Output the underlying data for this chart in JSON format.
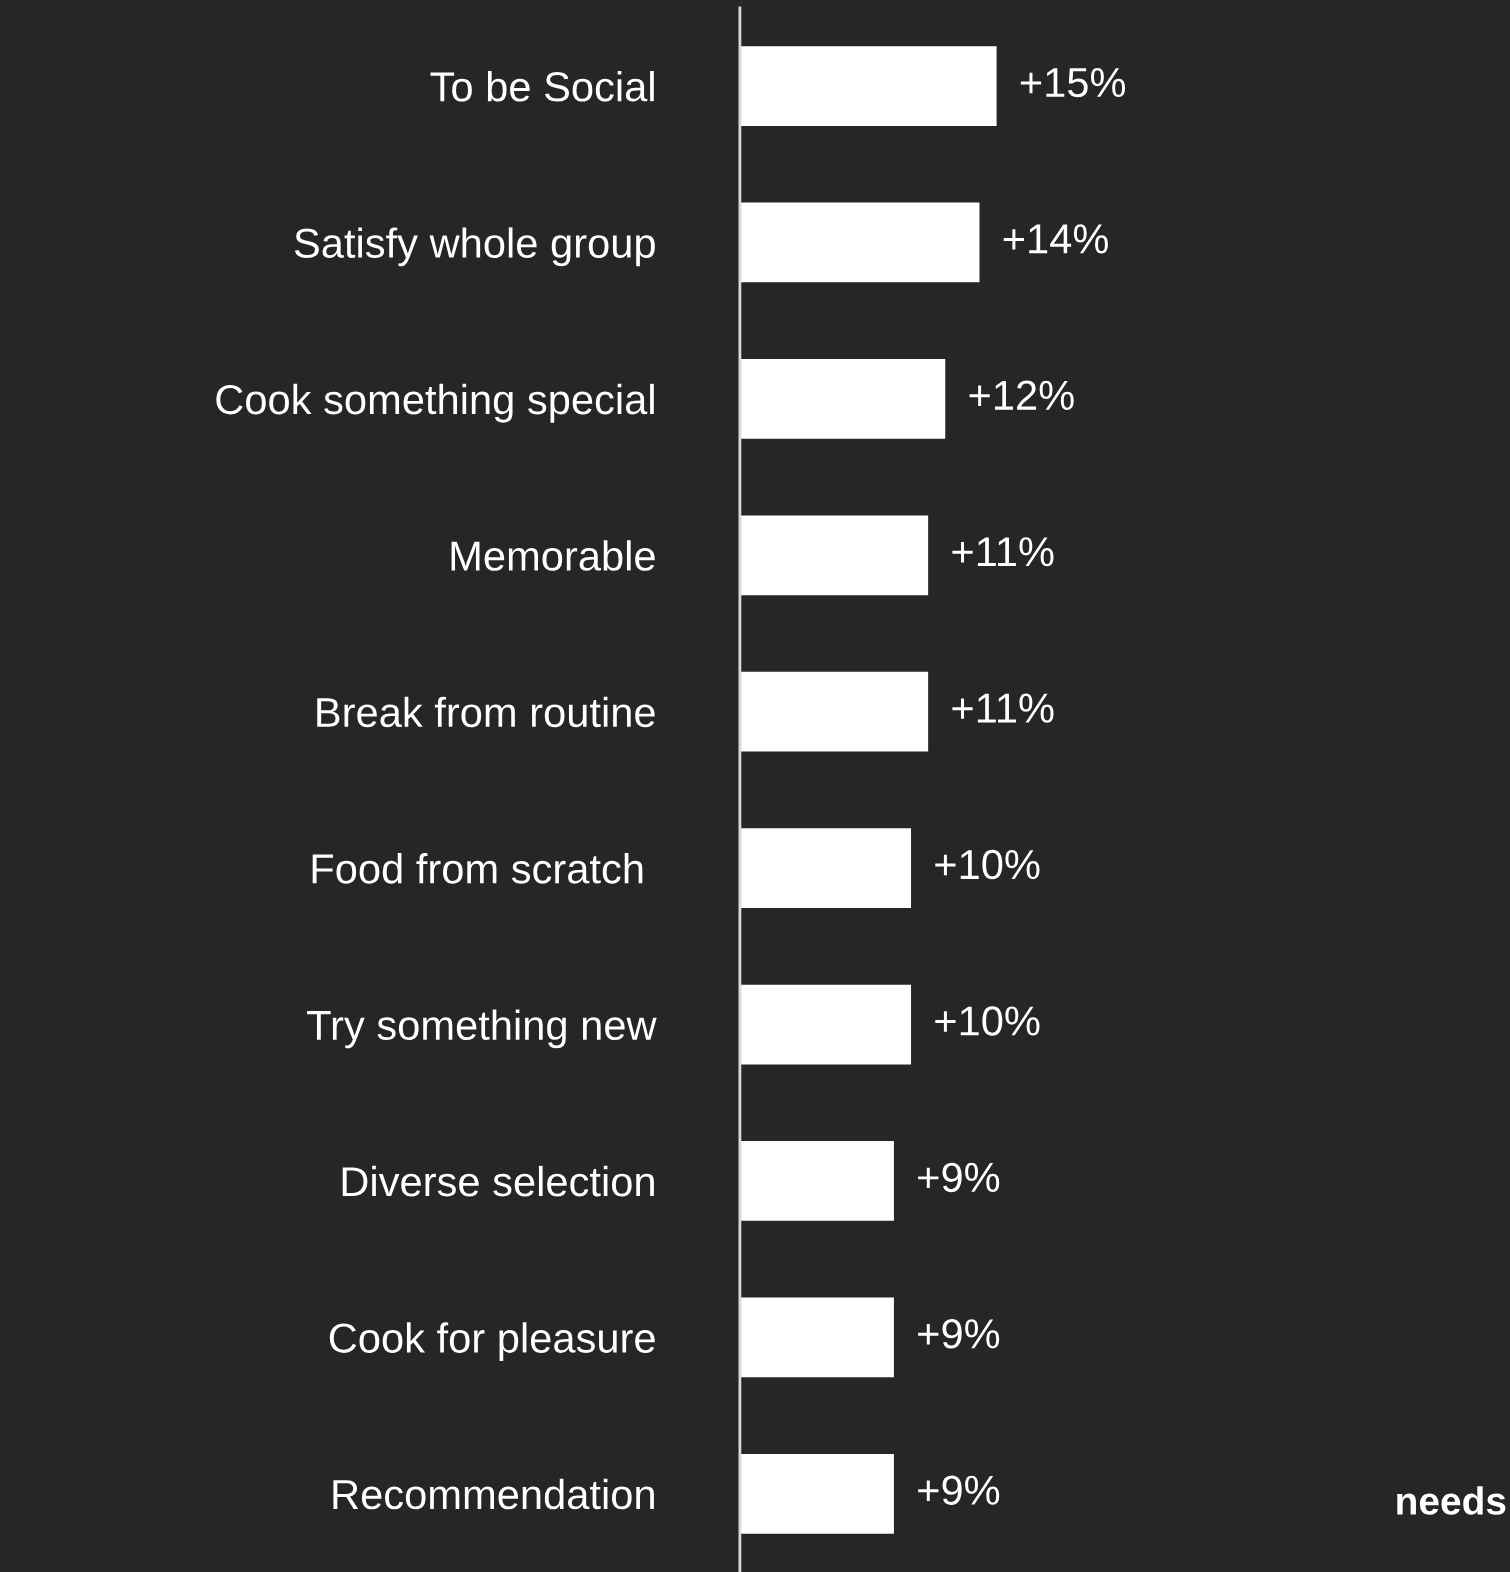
{
  "chart_data": {
    "type": "bar",
    "orientation": "horizontal",
    "categories": [
      "To be Social",
      "Satisfy whole group",
      "Cook something special",
      "Memorable",
      "Break from routine",
      "Food from scratch ",
      "Try something new",
      "Diverse selection",
      "Cook for pleasure",
      "Recommendation"
    ],
    "values": [
      15,
      14,
      12,
      11,
      11,
      10,
      10,
      9,
      9,
      9
    ],
    "value_labels": [
      "+15%",
      "+14%",
      "+12%",
      "+11%",
      "+11%",
      "+10%",
      "+10%",
      "+9%",
      "+9%",
      "+9%"
    ],
    "color": "#ffffff",
    "xlim": [
      0,
      45
    ],
    "tick_labels": "y",
    "grid": false,
    "annotations": [
      "needs"
    ]
  }
}
